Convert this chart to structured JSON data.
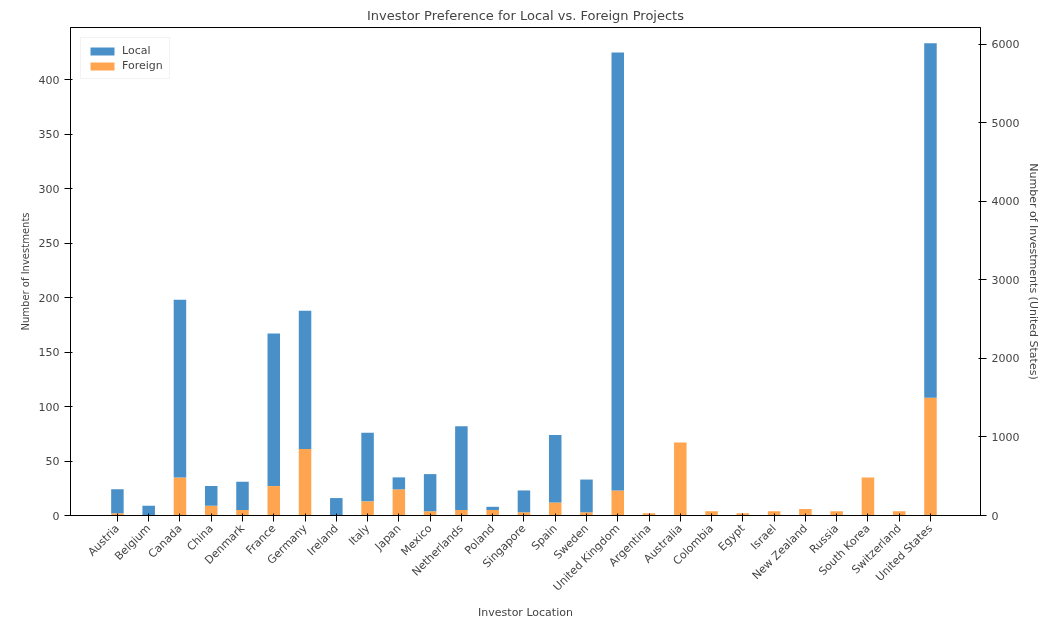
{
  "chart_data": {
    "type": "bar",
    "title": "Investor Preference for Local vs. Foreign Projects",
    "xlabel": "Investor Location",
    "ylabel": "Number of Investments",
    "y2label": "Number of Investments (United States)",
    "categories": [
      "Austria",
      "Belgium",
      "Canada",
      "China",
      "Denmark",
      "France",
      "Germany",
      "Ireland",
      "Italy",
      "Japan",
      "Mexico",
      "Netherlands",
      "Poland",
      "Singapore",
      "Spain",
      "Sweden",
      "United Kingdom",
      "Argentina",
      "Australia",
      "Colombia",
      "Egypt",
      "Israel",
      "New Zealand",
      "Russia",
      "South Korea",
      "Switzerland",
      "United States"
    ],
    "series": [
      {
        "name": "Foreign",
        "color": "#ffa54f",
        "values": [
          2,
          null,
          35,
          9,
          5,
          27,
          61,
          null,
          13,
          24,
          4,
          5,
          5,
          3,
          12,
          3,
          23,
          2,
          67,
          4,
          2,
          4,
          6,
          4,
          35,
          4,
          null
        ]
      },
      {
        "name": "Local",
        "color": "#4a90c8",
        "values": [
          22,
          9,
          163,
          18,
          26,
          140,
          127,
          16,
          63,
          11,
          34,
          77,
          3,
          20,
          62,
          30,
          402,
          null,
          null,
          null,
          null,
          null,
          null,
          null,
          null,
          null,
          null
        ]
      },
      {
        "color": "#ffa54f",
        "axis": "y2",
        "values": [
          null,
          null,
          null,
          null,
          null,
          null,
          null,
          null,
          null,
          null,
          null,
          null,
          null,
          null,
          null,
          null,
          null,
          null,
          null,
          null,
          null,
          null,
          null,
          null,
          null,
          null,
          1500
        ]
      },
      {
        "color": "#4a90c8",
        "axis": "y2",
        "values": [
          null,
          null,
          null,
          null,
          null,
          null,
          null,
          null,
          null,
          null,
          null,
          null,
          null,
          null,
          null,
          null,
          null,
          null,
          null,
          null,
          null,
          null,
          null,
          null,
          null,
          null,
          4510
        ]
      }
    ],
    "stacked": true,
    "ylim": [
      0,
      448
    ],
    "yticks": [
      0,
      50,
      100,
      150,
      200,
      250,
      300,
      350,
      400
    ],
    "y2lim": [
      0,
      6210
    ],
    "y2ticks": [
      0,
      1000,
      2000,
      3000,
      4000,
      5000,
      6000
    ],
    "grid": false,
    "legend": "top left"
  }
}
